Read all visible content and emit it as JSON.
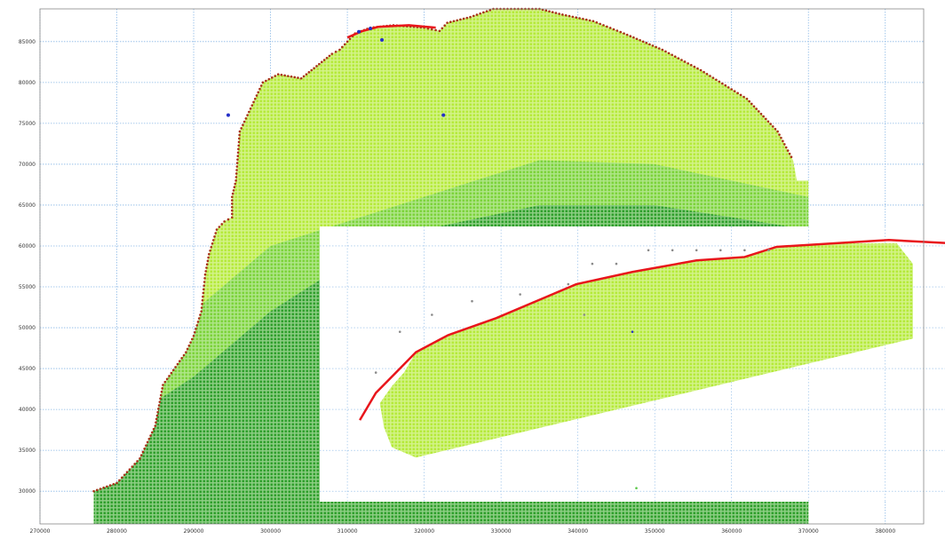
{
  "chart_data": {
    "type": "scatter",
    "title": "",
    "xlabel": "",
    "ylabel": "",
    "grid": true,
    "legend": "none",
    "xlim": [
      270000,
      385000
    ],
    "ylim": [
      26000,
      89000
    ],
    "x_ticks": [
      "270000",
      "280000",
      "290000",
      "300000",
      "310000",
      "320000",
      "330000",
      "340000",
      "350000",
      "360000",
      "370000",
      "380000"
    ],
    "y_ticks": [
      "30000",
      "35000",
      "40000",
      "45000",
      "50000",
      "55000",
      "60000",
      "65000",
      "70000",
      "75000",
      "80000",
      "85000"
    ],
    "colors": {
      "grid": "#8ab8e6",
      "light_green": "#b8ec3c",
      "mid_green": "#86d838",
      "dark_green": "#35a630",
      "coastline": "#e8151b",
      "blue_points": "#2530c8",
      "inset_bg": "#ffffff"
    },
    "main_domain": {
      "description_polygon": [
        [
          277000,
          26000
        ],
        [
          277000,
          30000
        ],
        [
          280000,
          31000
        ],
        [
          283000,
          34000
        ],
        [
          285000,
          38000
        ],
        [
          286000,
          43000
        ],
        [
          289000,
          47000
        ],
        [
          290000,
          49000
        ],
        [
          291000,
          52000
        ],
        [
          291500,
          56500
        ],
        [
          292000,
          59000
        ],
        [
          293000,
          62000
        ],
        [
          294000,
          63000
        ],
        [
          295000,
          63500
        ],
        [
          295000,
          66000
        ],
        [
          295500,
          68000
        ],
        [
          296000,
          74000
        ],
        [
          298000,
          78000
        ],
        [
          299000,
          80000
        ],
        [
          301000,
          81000
        ],
        [
          304000,
          80500
        ],
        [
          306000,
          82000
        ],
        [
          308000,
          83500
        ],
        [
          309000,
          84000
        ],
        [
          311000,
          86000
        ],
        [
          313000,
          86700
        ],
        [
          316000,
          87000
        ],
        [
          320000,
          86700
        ],
        [
          322000,
          86300
        ],
        [
          323000,
          87300
        ],
        [
          326000,
          88000
        ],
        [
          329000,
          89000
        ],
        [
          335000,
          89000
        ],
        [
          338000,
          88300
        ],
        [
          342000,
          87500
        ],
        [
          346000,
          86000
        ],
        [
          351000,
          84000
        ],
        [
          356000,
          81500
        ],
        [
          362000,
          78000
        ],
        [
          366000,
          74000
        ],
        [
          368000,
          70500
        ],
        [
          368500,
          68000
        ],
        [
          370000,
          68000
        ],
        [
          370000,
          26000
        ]
      ],
      "coastline": [
        [
          277000,
          30000
        ],
        [
          280000,
          31000
        ],
        [
          283000,
          34000
        ],
        [
          285000,
          38000
        ],
        [
          286000,
          43000
        ],
        [
          289000,
          47000
        ],
        [
          290000,
          49000
        ],
        [
          291000,
          52000
        ],
        [
          291500,
          56500
        ],
        [
          292000,
          59000
        ],
        [
          293000,
          62000
        ],
        [
          294000,
          63000
        ],
        [
          295000,
          63500
        ],
        [
          295000,
          66000
        ],
        [
          295500,
          68000
        ],
        [
          296000,
          74000
        ],
        [
          298000,
          78000
        ],
        [
          299000,
          80000
        ],
        [
          301000,
          81000
        ],
        [
          304000,
          80500
        ],
        [
          306000,
          82000
        ],
        [
          308000,
          83500
        ],
        [
          309000,
          84000
        ],
        [
          311000,
          86000
        ],
        [
          313000,
          86700
        ],
        [
          316000,
          87000
        ],
        [
          320000,
          86700
        ],
        [
          322000,
          86300
        ],
        [
          323000,
          87300
        ],
        [
          326000,
          88000
        ],
        [
          329000,
          89000
        ],
        [
          335000,
          89000
        ],
        [
          338000,
          88300
        ],
        [
          342000,
          87500
        ],
        [
          346000,
          86000
        ],
        [
          351000,
          84000
        ],
        [
          356000,
          81500
        ],
        [
          362000,
          78000
        ],
        [
          366000,
          74000
        ],
        [
          368000,
          70500
        ]
      ],
      "red_segments": [
        [
          [
            310000,
            85500
          ],
          [
            312000,
            86300
          ],
          [
            314000,
            86800
          ],
          [
            318000,
            87000
          ],
          [
            321500,
            86700
          ]
        ]
      ],
      "blue_points": [
        [
          311500,
          86200
        ],
        [
          313000,
          86600
        ],
        [
          314500,
          85200
        ],
        [
          322500,
          76000
        ],
        [
          294500,
          76000
        ]
      ]
    },
    "inset": {
      "xlim": [
        270000,
        385000
      ],
      "ylim": [
        26000,
        89000
      ],
      "domain_polygon": [
        [
          318000,
          32500
        ],
        [
          315000,
          34000
        ],
        [
          314000,
          37000
        ],
        [
          313500,
          40500
        ],
        [
          315000,
          43000
        ],
        [
          316500,
          45000
        ],
        [
          318000,
          48000
        ],
        [
          322000,
          50500
        ],
        [
          328000,
          53000
        ],
        [
          334000,
          56000
        ],
        [
          338000,
          58000
        ],
        [
          345000,
          59800
        ],
        [
          353000,
          61500
        ],
        [
          359000,
          62000
        ],
        [
          363000,
          63500
        ],
        [
          370000,
          64000
        ],
        [
          378000,
          64000
        ],
        [
          380000,
          61000
        ],
        [
          380000,
          50000
        ]
      ],
      "coastline": [
        [
          311000,
          38000
        ],
        [
          313000,
          42000
        ],
        [
          315500,
          45000
        ],
        [
          318000,
          48000
        ],
        [
          322000,
          50500
        ],
        [
          328000,
          53000
        ],
        [
          334000,
          56000
        ],
        [
          338000,
          58000
        ],
        [
          345000,
          59800
        ],
        [
          353000,
          61500
        ],
        [
          359000,
          62000
        ],
        [
          363000,
          63500
        ],
        [
          370000,
          64000
        ],
        [
          377000,
          64500
        ],
        [
          385000,
          64000
        ]
      ],
      "scattered_points": [
        [
          347000,
          63000
        ],
        [
          350000,
          63000
        ],
        [
          353000,
          63000
        ],
        [
          356000,
          63000
        ],
        [
          359000,
          63000
        ],
        [
          362000,
          63000
        ],
        [
          340000,
          61000
        ],
        [
          343000,
          61000
        ],
        [
          337000,
          58000
        ],
        [
          331000,
          56500
        ],
        [
          325000,
          55500
        ],
        [
          320000,
          53500
        ],
        [
          316000,
          51000
        ],
        [
          313000,
          45000
        ],
        [
          345000,
          51000
        ],
        [
          345500,
          28000
        ],
        [
          339000,
          53500
        ]
      ]
    }
  }
}
